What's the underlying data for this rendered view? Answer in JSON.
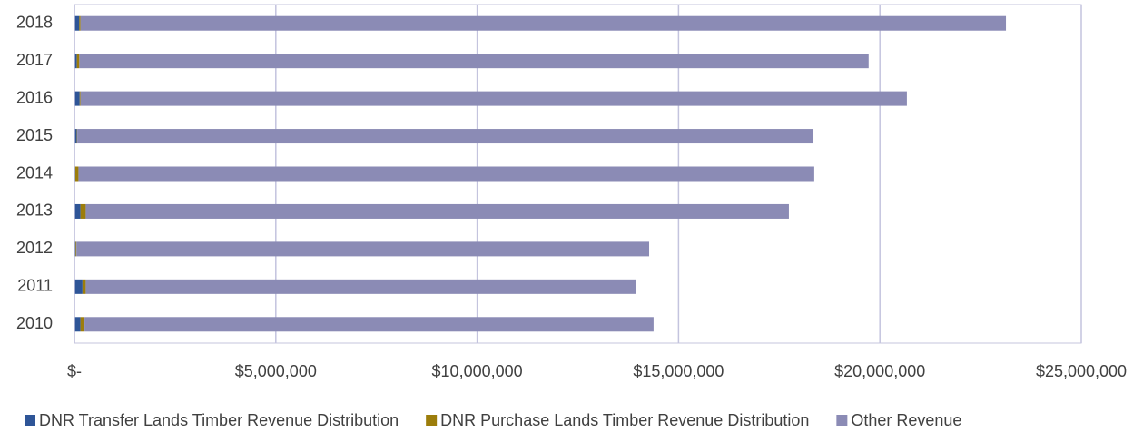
{
  "chart_data": {
    "type": "bar",
    "orientation": "horizontal",
    "stacked": true,
    "categories": [
      "2010",
      "2011",
      "2012",
      "2013",
      "2014",
      "2015",
      "2016",
      "2017",
      "2018"
    ],
    "series": [
      {
        "name": "DNR Transfer Lands Timber Revenue Distribution",
        "color": "#2e5597",
        "values": [
          150000,
          200000,
          30000,
          150000,
          20000,
          60000,
          130000,
          60000,
          120000
        ]
      },
      {
        "name": "DNR Purchase Lands Timber Revenue Distribution",
        "color": "#9c7d0b",
        "values": [
          100000,
          80000,
          20000,
          130000,
          80000,
          10000,
          20000,
          60000,
          30000
        ]
      },
      {
        "name": "Other Revenue",
        "color": "#8b8bb5",
        "values": [
          14130000,
          13670000,
          14220000,
          17460000,
          18270000,
          18280000,
          20520000,
          19600000,
          22980000
        ]
      }
    ],
    "xlim": [
      0,
      25000000
    ],
    "xticks": [
      {
        "value": 0,
        "label": "$-"
      },
      {
        "value": 5000000,
        "label": "$5,000,000"
      },
      {
        "value": 10000000,
        "label": "$10,000,000"
      },
      {
        "value": 15000000,
        "label": "$15,000,000"
      },
      {
        "value": 20000000,
        "label": "$20,000,000"
      },
      {
        "value": 25000000,
        "label": "$25,000,000"
      }
    ],
    "grid": true,
    "legend": "bottom"
  }
}
